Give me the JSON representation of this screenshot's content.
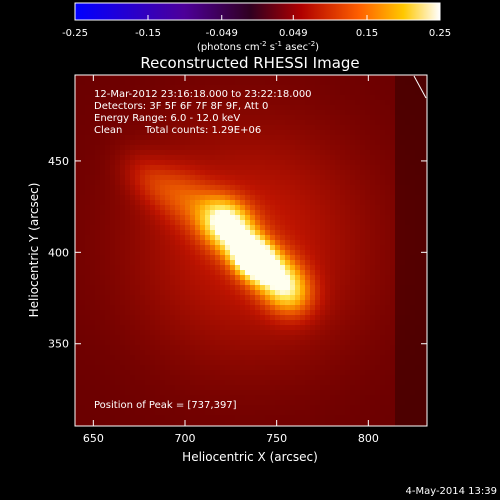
{
  "chart_data": {
    "type": "heatmap",
    "title": "Reconstructed RHESSI Image",
    "xlabel": "Heliocentric X (arcsec)",
    "ylabel": "Heliocentric Y (arcsec)",
    "xlim": [
      640,
      832
    ],
    "ylim": [
      305,
      497
    ],
    "x_ticks": [
      650,
      700,
      750,
      800
    ],
    "y_ticks": [
      350,
      400,
      450
    ],
    "colorbar": {
      "range": [
        -0.25,
        0.25
      ],
      "ticks": [
        "-0.25",
        "-0.15",
        "-0.049",
        "0.049",
        "0.15",
        "0.25"
      ],
      "tick_values": [
        -0.25,
        -0.15,
        -0.049,
        0.049,
        0.15,
        0.25
      ],
      "unit_prefix": "(photons cm",
      "unit_sup1": "-2",
      "unit_mid1": " s",
      "unit_sup2": "-1",
      "unit_mid2": " asec",
      "unit_sup3": "-2",
      "unit_suffix": ")"
    },
    "annotations": {
      "time_range": "12-Mar-2012 23:16:18.000 to 23:22:18.000",
      "detectors": "Detectors: 3F 5F 6F 7F 8F 9F, Att 0",
      "energy": "Energy Range: 6.0 - 12.0 keV",
      "algorithm": "Clean",
      "total_counts": "Total counts: 1.29E+06",
      "peak": "Position of Peak = [737,397]"
    },
    "peak_position": [
      737,
      397
    ],
    "sources": [
      {
        "x": 737,
        "y": 397,
        "amp": 0.25,
        "sx": 9,
        "sy": 7
      },
      {
        "x": 723,
        "y": 415,
        "amp": 0.19,
        "sx": 11,
        "sy": 9
      },
      {
        "x": 750,
        "y": 387,
        "amp": 0.12,
        "sx": 12,
        "sy": 9
      },
      {
        "x": 757,
        "y": 377,
        "amp": 0.08,
        "sx": 10,
        "sy": 9
      },
      {
        "x": 700,
        "y": 430,
        "amp": 0.06,
        "sx": 14,
        "sy": 10
      },
      {
        "x": 680,
        "y": 440,
        "amp": 0.04,
        "sx": 12,
        "sy": 8
      },
      {
        "x": 735,
        "y": 405,
        "amp": 0.06,
        "sx": 45,
        "sy": 45
      }
    ],
    "background": 0.035,
    "footer_date": "4-May-2014 13:39"
  }
}
